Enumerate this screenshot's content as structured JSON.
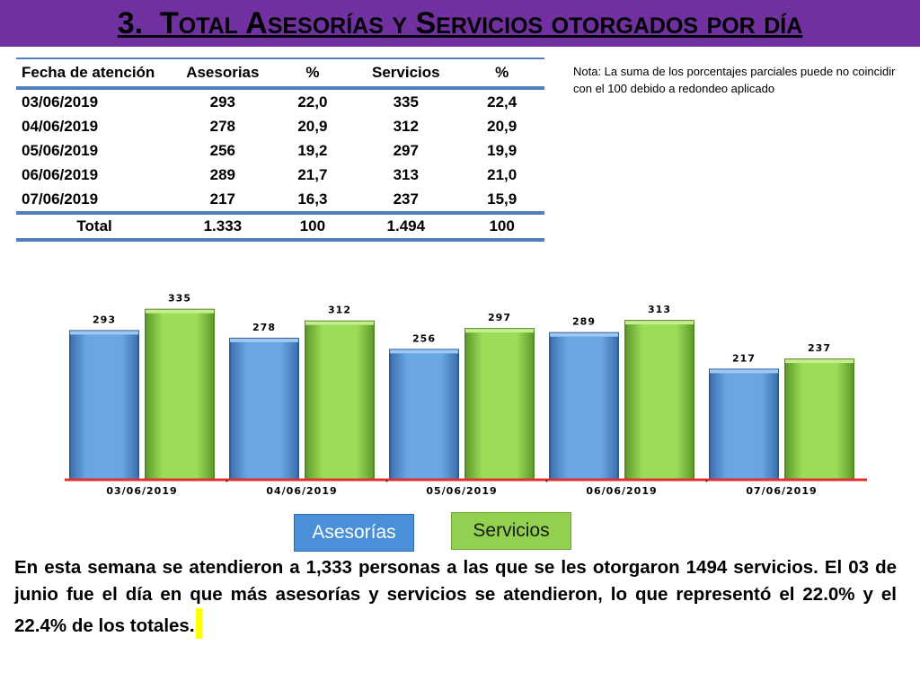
{
  "title": {
    "number": "3.",
    "words": [
      {
        "cap": "T",
        "rest": "otal"
      },
      {
        "cap": "A",
        "rest": "sesorías"
      },
      {
        "cap": "",
        "rest": "y"
      },
      {
        "cap": "S",
        "rest": "ervicios"
      },
      {
        "cap": "",
        "rest": "otorgados"
      },
      {
        "cap": "",
        "rest": "por"
      },
      {
        "cap": "",
        "rest": "día"
      }
    ]
  },
  "table": {
    "headers": [
      "Fecha de atención",
      "Asesorias",
      "%",
      "Servicios",
      "%"
    ],
    "rows": [
      [
        "03/06/2019",
        "293",
        "22,0",
        "335",
        "22,4"
      ],
      [
        "04/06/2019",
        "278",
        "20,9",
        "312",
        "20,9"
      ],
      [
        "05/06/2019",
        "256",
        "19,2",
        "297",
        "19,9"
      ],
      [
        "06/06/2019",
        "289",
        "21,7",
        "313",
        "21,0"
      ],
      [
        "07/06/2019",
        "217",
        "16,3",
        "237",
        "15,9"
      ]
    ],
    "total": [
      "Total",
      "1.333",
      "100",
      "1.494",
      "100"
    ]
  },
  "note": "Nota: La suma de los porcentajes parciales puede no coincidir con el 100 debido a redondeo aplicado",
  "chart_data": {
    "type": "bar",
    "categories": [
      "03/06/2019",
      "04/06/2019",
      "05/06/2019",
      "06/06/2019",
      "07/06/2019"
    ],
    "series": [
      {
        "name": "Asesorías",
        "values": [
          293,
          278,
          256,
          289,
          217
        ],
        "color": "#5B9BD5"
      },
      {
        "name": "Servicios",
        "values": [
          335,
          312,
          297,
          313,
          237
        ],
        "color": "#92D050"
      }
    ],
    "ylim": [
      0,
      350
    ],
    "grid": false,
    "legend": "bottom"
  },
  "legend": {
    "asesorias": "Asesorías",
    "servicios": "Servicios"
  },
  "paragraph": "En esta semana se atendieron a 1,333 personas a las que se les otorgaron 1494 servicios. El 03 de junio fue el día en que más asesorías y servicios se atendieron, lo que representó  el 22.0% y el 22.4% de los totales.",
  "colors": {
    "header": "#7030A0",
    "accent": "#4F81BD",
    "axis": "#E03030"
  }
}
